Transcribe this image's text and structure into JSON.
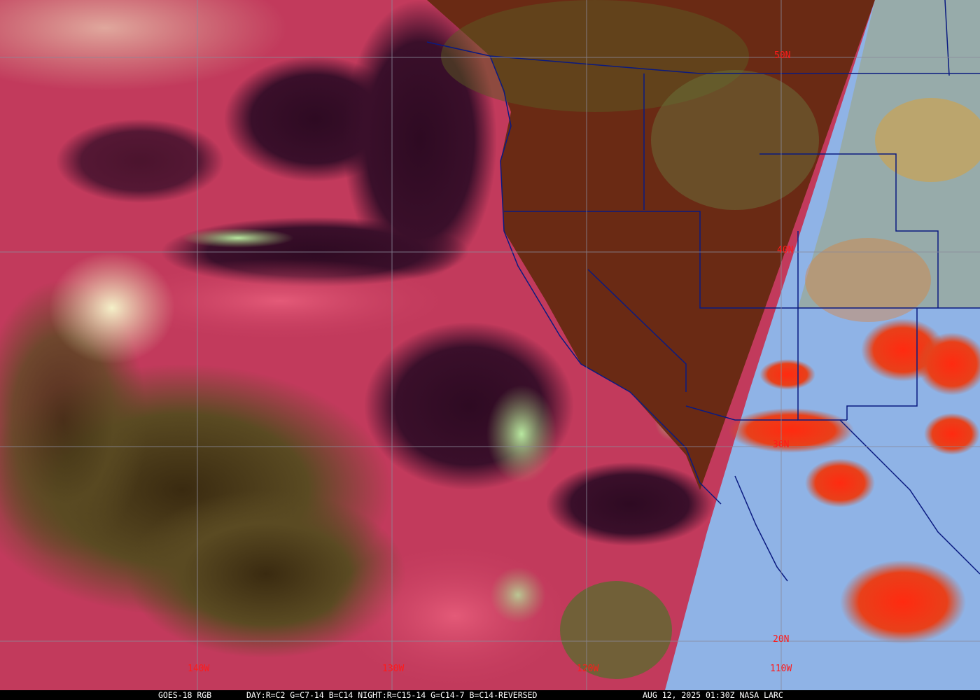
{
  "colors": {
    "ocean_airmass": "#c23a5c",
    "dry_slot": "#3a0f2a",
    "land": "#6a2a14",
    "night_swath": "#8fb3e6",
    "convection": "#ff2a10",
    "borders": "#0a1a80",
    "grid": "#8a8a9a",
    "grid_label": "#ff1a1a"
  },
  "grid_labels": {
    "lon": [
      "140W",
      "130W",
      "120W",
      "110W"
    ],
    "lat": [
      "50N",
      "40N",
      "30N",
      "20N"
    ]
  },
  "caption": {
    "satellite": "GOES-18 RGB",
    "bands": "DAY:R=C2 G=C7-14 B=C14 NIGHT:R=C15-14 G=C14-7 B=C14-REVERSED",
    "timestamp": "AUG 12, 2025 01:30Z NASA LARC"
  }
}
